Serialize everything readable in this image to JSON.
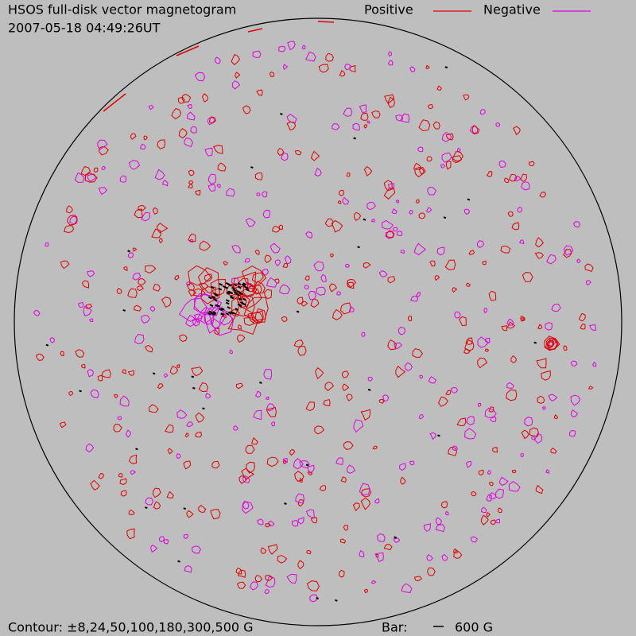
{
  "header": {
    "title": "HSOS full-disk vector magnetogram",
    "timestamp": "2007-05-18 04:49:26UT"
  },
  "legend": [
    {
      "name": "Positive",
      "color": "#e00000"
    },
    {
      "name": "Negative",
      "color": "#e000e0"
    }
  ],
  "footer": {
    "contour": "Contour: ±8,24,50,100,180,300,500 G",
    "bar_label": "Bar:",
    "bar_value": "600 G"
  }
}
